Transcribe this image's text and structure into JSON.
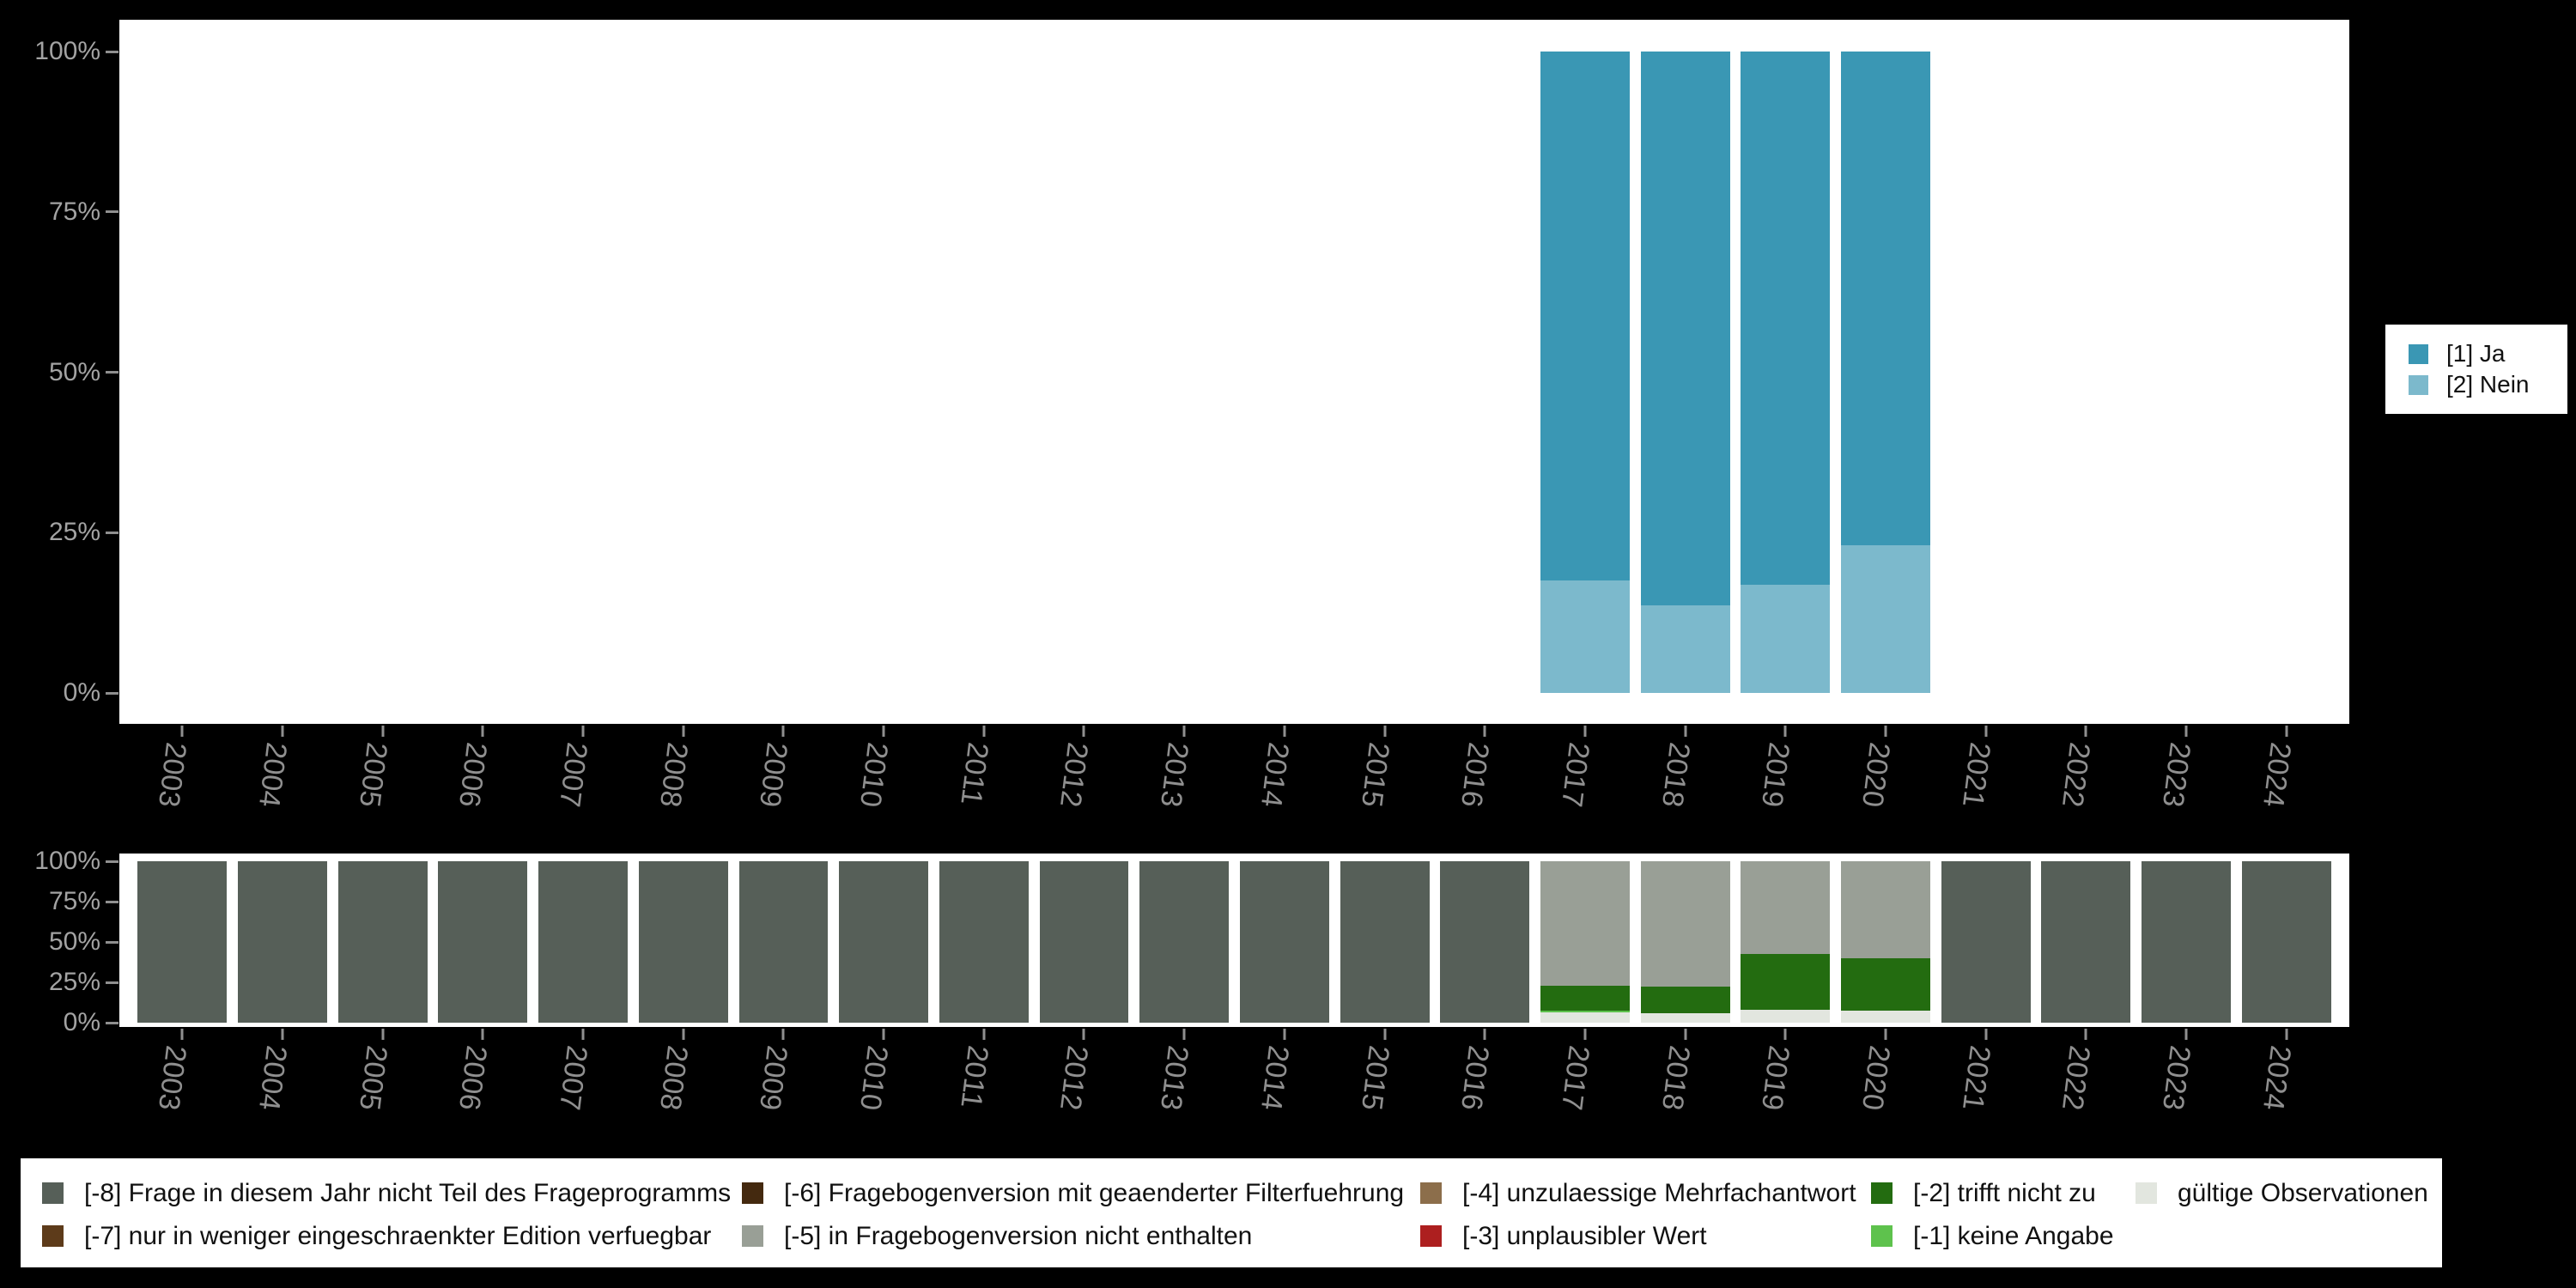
{
  "page": {
    "background": "#000000",
    "panel_background": "#ffffff"
  },
  "palette": {
    "ja": "#3a97b4",
    "nein": "#7cb9cc",
    "m8": "#565f58",
    "m7": "#5d3b1a",
    "m6": "#44290f",
    "m5": "#999f96",
    "m4": "#8c6e4b",
    "m3": "#ad1f1f",
    "m2": "#236c10",
    "m1": "#5ec24d",
    "valid": "#e2e6df",
    "axis_text_y": "#a3a3a3",
    "axis_text_x": "#8f8f8f",
    "tick": "#8f8f8f",
    "legend_text": "#111111"
  },
  "axis": {
    "years": [
      "2003",
      "2004",
      "2005",
      "2006",
      "2007",
      "2008",
      "2009",
      "2010",
      "2011",
      "2012",
      "2013",
      "2014",
      "2015",
      "2016",
      "2017",
      "2018",
      "2019",
      "2020",
      "2021",
      "2022",
      "2023",
      "2024"
    ],
    "percent_ticks": [
      "0%",
      "25%",
      "50%",
      "75%",
      "100%"
    ]
  },
  "chart_data": [
    {
      "type": "bar",
      "name": "value-distribution",
      "stacked": true,
      "unit": "%",
      "ylim": [
        0,
        100
      ],
      "grid": false,
      "legend_position": "right",
      "categories": [
        "2003",
        "2004",
        "2005",
        "2006",
        "2007",
        "2008",
        "2009",
        "2010",
        "2011",
        "2012",
        "2013",
        "2014",
        "2015",
        "2016",
        "2017",
        "2018",
        "2019",
        "2020",
        "2021",
        "2022",
        "2023",
        "2024"
      ],
      "series": [
        {
          "name": "[1] Ja",
          "color": "ja",
          "values": [
            null,
            null,
            null,
            null,
            null,
            null,
            null,
            null,
            null,
            null,
            null,
            null,
            null,
            null,
            82.5,
            86.3,
            83.1,
            77.0,
            null,
            null,
            null,
            null
          ]
        },
        {
          "name": "[2] Nein",
          "color": "nein",
          "values": [
            null,
            null,
            null,
            null,
            null,
            null,
            null,
            null,
            null,
            null,
            null,
            null,
            null,
            null,
            17.5,
            13.7,
            16.9,
            23.0,
            null,
            null,
            null,
            null
          ]
        }
      ]
    },
    {
      "type": "bar",
      "name": "missing-distribution",
      "stacked": true,
      "unit": "%",
      "ylim": [
        0,
        100
      ],
      "grid": false,
      "legend_position": "bottom",
      "categories": [
        "2003",
        "2004",
        "2005",
        "2006",
        "2007",
        "2008",
        "2009",
        "2010",
        "2011",
        "2012",
        "2013",
        "2014",
        "2015",
        "2016",
        "2017",
        "2018",
        "2019",
        "2020",
        "2021",
        "2022",
        "2023",
        "2024"
      ],
      "series": [
        {
          "name": "[-8] Frage in diesem Jahr nicht Teil des Frageprogramms",
          "color": "m8",
          "values": [
            100,
            100,
            100,
            100,
            100,
            100,
            100,
            100,
            100,
            100,
            100,
            100,
            100,
            100,
            null,
            null,
            null,
            null,
            100,
            100,
            100,
            100
          ]
        },
        {
          "name": "[-5] in Fragebogenversion nicht enthalten",
          "color": "m5",
          "values": [
            null,
            null,
            null,
            null,
            null,
            null,
            null,
            null,
            null,
            null,
            null,
            null,
            null,
            null,
            77,
            77.5,
            57.5,
            60,
            null,
            null,
            null,
            null
          ]
        },
        {
          "name": "[-2] trifft nicht zu",
          "color": "m2",
          "values": [
            null,
            null,
            null,
            null,
            null,
            null,
            null,
            null,
            null,
            null,
            null,
            null,
            null,
            null,
            15.5,
            16.5,
            34.5,
            32.5,
            null,
            null,
            null,
            null
          ]
        },
        {
          "name": "[-1] keine Angabe",
          "color": "m1",
          "values": [
            null,
            null,
            null,
            null,
            null,
            null,
            null,
            null,
            null,
            null,
            null,
            null,
            null,
            null,
            1,
            null,
            null,
            null,
            null,
            null,
            null,
            null
          ]
        },
        {
          "name": "gültige Observationen",
          "color": "valid",
          "values": [
            null,
            null,
            null,
            null,
            null,
            null,
            null,
            null,
            null,
            null,
            null,
            null,
            null,
            null,
            6.5,
            6,
            8,
            7.5,
            null,
            null,
            null,
            null
          ]
        }
      ]
    }
  ],
  "values_legend": {
    "items": [
      {
        "label": "[1] Ja",
        "color": "ja"
      },
      {
        "label": "[2] Nein",
        "color": "nein"
      }
    ]
  },
  "missing_legend": {
    "columns": [
      {
        "x": 25,
        "items": [
          {
            "label": "[-8] Frage in diesem Jahr nicht Teil des Frageprogramms",
            "color": "m8"
          },
          {
            "label": "[-7] nur in weniger eingeschraenkter Edition verfuegbar",
            "color": "m7"
          }
        ]
      },
      {
        "x": 840,
        "items": [
          {
            "label": "[-6] Fragebogenversion mit geaenderter Filterfuehrung",
            "color": "m6"
          },
          {
            "label": "[-5] in Fragebogenversion nicht enthalten",
            "color": "m5"
          }
        ]
      },
      {
        "x": 1630,
        "items": [
          {
            "label": "[-4] unzulaessige Mehrfachantwort",
            "color": "m4"
          },
          {
            "label": "[-3] unplausibler Wert",
            "color": "m3"
          }
        ]
      },
      {
        "x": 2155,
        "items": [
          {
            "label": "[-2] trifft nicht zu",
            "color": "m2"
          },
          {
            "label": "[-1] keine Angabe",
            "color": "m1"
          }
        ]
      },
      {
        "x": 2463,
        "items": [
          {
            "label": "gültige Observationen",
            "color": "valid"
          }
        ]
      }
    ]
  }
}
